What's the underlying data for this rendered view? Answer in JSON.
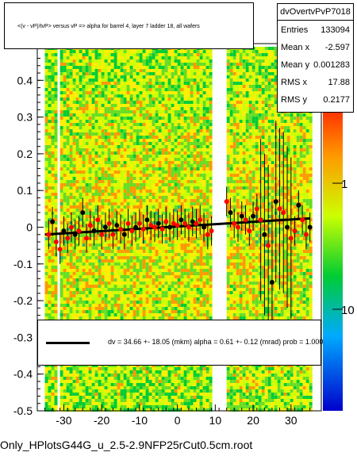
{
  "title": "<(v - vP)/tvP> versus   vP => alpha for barrel 4, layer 7 ladder 18, all wafers",
  "stats": {
    "name": "dvOvertvPvP7018",
    "rows": [
      {
        "label": "Entries",
        "value": "133094"
      },
      {
        "label": "Mean x",
        "value": "-2.597"
      },
      {
        "label": "Mean y",
        "value": "0.001283"
      },
      {
        "label": "RMS x",
        "value": "17.88"
      },
      {
        "label": "RMS y",
        "value": "0.2177"
      }
    ]
  },
  "fit_text": "dv =    34.66 +- 18.05 (mkm) alpha =    0.61 +-  0.12 (mrad) prob = 1.000",
  "file_label": "Only_HPlotsG44G_u_2.5-2.9NFP25rCut0.5cm.root",
  "colors": {
    "fit_line": "#000000",
    "profile_red": "#ff0000",
    "profile_black": "#000000",
    "heat_low": "#00cc33",
    "heat_mid": "#ccff00",
    "heat_high": "#ff9900"
  },
  "chart_data": {
    "type": "heatmap",
    "overlay": "profile",
    "xlim": [
      -37,
      38
    ],
    "ylim": [
      -0.5,
      0.5
    ],
    "x_ticks": [
      -30,
      -20,
      -10,
      0,
      10,
      20,
      30
    ],
    "y_ticks": [
      -0.5,
      -0.4,
      -0.3,
      -0.2,
      -0.1,
      0,
      0.1,
      0.2,
      0.3,
      0.4
    ],
    "x_tick_labels": [
      "-30",
      "-20",
      "-10",
      "0",
      "10",
      "20",
      "30"
    ],
    "y_tick_labels": [
      "-0.5",
      "-0.4",
      "-0.3",
      "-0.2",
      "-0.1",
      "0",
      "0.1",
      "0.2",
      "0.3",
      "0.4"
    ],
    "colorbar_labels": [
      "1",
      "10"
    ],
    "colorbar_scale": "log",
    "heatmap_x_bands": [
      [
        -35,
        -32
      ],
      [
        -31,
        9
      ],
      [
        13,
        35
      ]
    ],
    "fit_line": {
      "x": [
        -35,
        35
      ],
      "y": [
        -0.02,
        0.024
      ]
    },
    "profile_points": [
      {
        "x": -34,
        "y": -0.02,
        "c": "red"
      },
      {
        "x": -33,
        "y": 0.015,
        "c": "black"
      },
      {
        "x": -32,
        "y": -0.04,
        "c": "red"
      },
      {
        "x": -31,
        "y": -0.06,
        "c": "red"
      },
      {
        "x": -30,
        "y": -0.01,
        "c": "black"
      },
      {
        "x": -29,
        "y": -0.03,
        "c": "red"
      },
      {
        "x": -28,
        "y": 0.0,
        "c": "red"
      },
      {
        "x": -27,
        "y": -0.02,
        "c": "black"
      },
      {
        "x": -26,
        "y": -0.01,
        "c": "red"
      },
      {
        "x": -25,
        "y": 0.04,
        "c": "black"
      },
      {
        "x": -24,
        "y": -0.03,
        "c": "red"
      },
      {
        "x": -23,
        "y": 0.005,
        "c": "red"
      },
      {
        "x": -22,
        "y": -0.01,
        "c": "black"
      },
      {
        "x": -21,
        "y": 0.02,
        "c": "red"
      },
      {
        "x": -20,
        "y": -0.02,
        "c": "red"
      },
      {
        "x": -19,
        "y": 0.0,
        "c": "black"
      },
      {
        "x": -18,
        "y": 0.01,
        "c": "red"
      },
      {
        "x": -17,
        "y": -0.02,
        "c": "red"
      },
      {
        "x": -16,
        "y": 0.005,
        "c": "black"
      },
      {
        "x": -15,
        "y": -0.005,
        "c": "red"
      },
      {
        "x": -14,
        "y": -0.02,
        "c": "black"
      },
      {
        "x": -13,
        "y": 0.01,
        "c": "red"
      },
      {
        "x": -12,
        "y": -0.01,
        "c": "red"
      },
      {
        "x": -11,
        "y": 0.0,
        "c": "black"
      },
      {
        "x": -10,
        "y": 0.01,
        "c": "red"
      },
      {
        "x": -9,
        "y": -0.005,
        "c": "red"
      },
      {
        "x": -8,
        "y": 0.02,
        "c": "black"
      },
      {
        "x": -7,
        "y": 0.005,
        "c": "red"
      },
      {
        "x": -6,
        "y": 0.0,
        "c": "red"
      },
      {
        "x": -5,
        "y": 0.01,
        "c": "black"
      },
      {
        "x": -4,
        "y": -0.005,
        "c": "red"
      },
      {
        "x": -3,
        "y": 0.015,
        "c": "red"
      },
      {
        "x": -2,
        "y": 0.0,
        "c": "black"
      },
      {
        "x": -1,
        "y": 0.01,
        "c": "red"
      },
      {
        "x": 0,
        "y": 0.005,
        "c": "red"
      },
      {
        "x": 1,
        "y": 0.02,
        "c": "black"
      },
      {
        "x": 2,
        "y": 0.01,
        "c": "red"
      },
      {
        "x": 3,
        "y": 0.0,
        "c": "red"
      },
      {
        "x": 4,
        "y": 0.015,
        "c": "black"
      },
      {
        "x": 5,
        "y": 0.01,
        "c": "red"
      },
      {
        "x": 6,
        "y": 0.02,
        "c": "red"
      },
      {
        "x": 7,
        "y": 0.0,
        "c": "black"
      },
      {
        "x": 8,
        "y": -0.02,
        "c": "red"
      },
      {
        "x": 9,
        "y": -0.01,
        "c": "red"
      },
      {
        "x": 13,
        "y": 0.07,
        "c": "red"
      },
      {
        "x": 14,
        "y": 0.04,
        "c": "black"
      },
      {
        "x": 15,
        "y": 0.01,
        "c": "red"
      },
      {
        "x": 16,
        "y": 0.0,
        "c": "red"
      },
      {
        "x": 17,
        "y": 0.03,
        "c": "black"
      },
      {
        "x": 18,
        "y": 0.02,
        "c": "red"
      },
      {
        "x": 19,
        "y": -0.01,
        "c": "red"
      },
      {
        "x": 20,
        "y": 0.03,
        "c": "black"
      },
      {
        "x": 21,
        "y": 0.05,
        "c": "red"
      },
      {
        "x": 22,
        "y": 0.02,
        "c": "red"
      },
      {
        "x": 23,
        "y": -0.02,
        "c": "black"
      },
      {
        "x": 24,
        "y": -0.05,
        "c": "red"
      },
      {
        "x": 25,
        "y": -0.15,
        "c": "black"
      },
      {
        "x": 26,
        "y": 0.07,
        "c": "black"
      },
      {
        "x": 27,
        "y": 0.05,
        "c": "red"
      },
      {
        "x": 28,
        "y": 0.04,
        "c": "red"
      },
      {
        "x": 29,
        "y": 0.0,
        "c": "black"
      },
      {
        "x": 30,
        "y": -0.03,
        "c": "red"
      },
      {
        "x": 31,
        "y": -0.01,
        "c": "red"
      },
      {
        "x": 32,
        "y": 0.06,
        "c": "black"
      },
      {
        "x": 33,
        "y": 0.02,
        "c": "red"
      },
      {
        "x": 34,
        "y": -0.02,
        "c": "red"
      },
      {
        "x": 35,
        "y": 0.0,
        "c": "black"
      }
    ]
  }
}
